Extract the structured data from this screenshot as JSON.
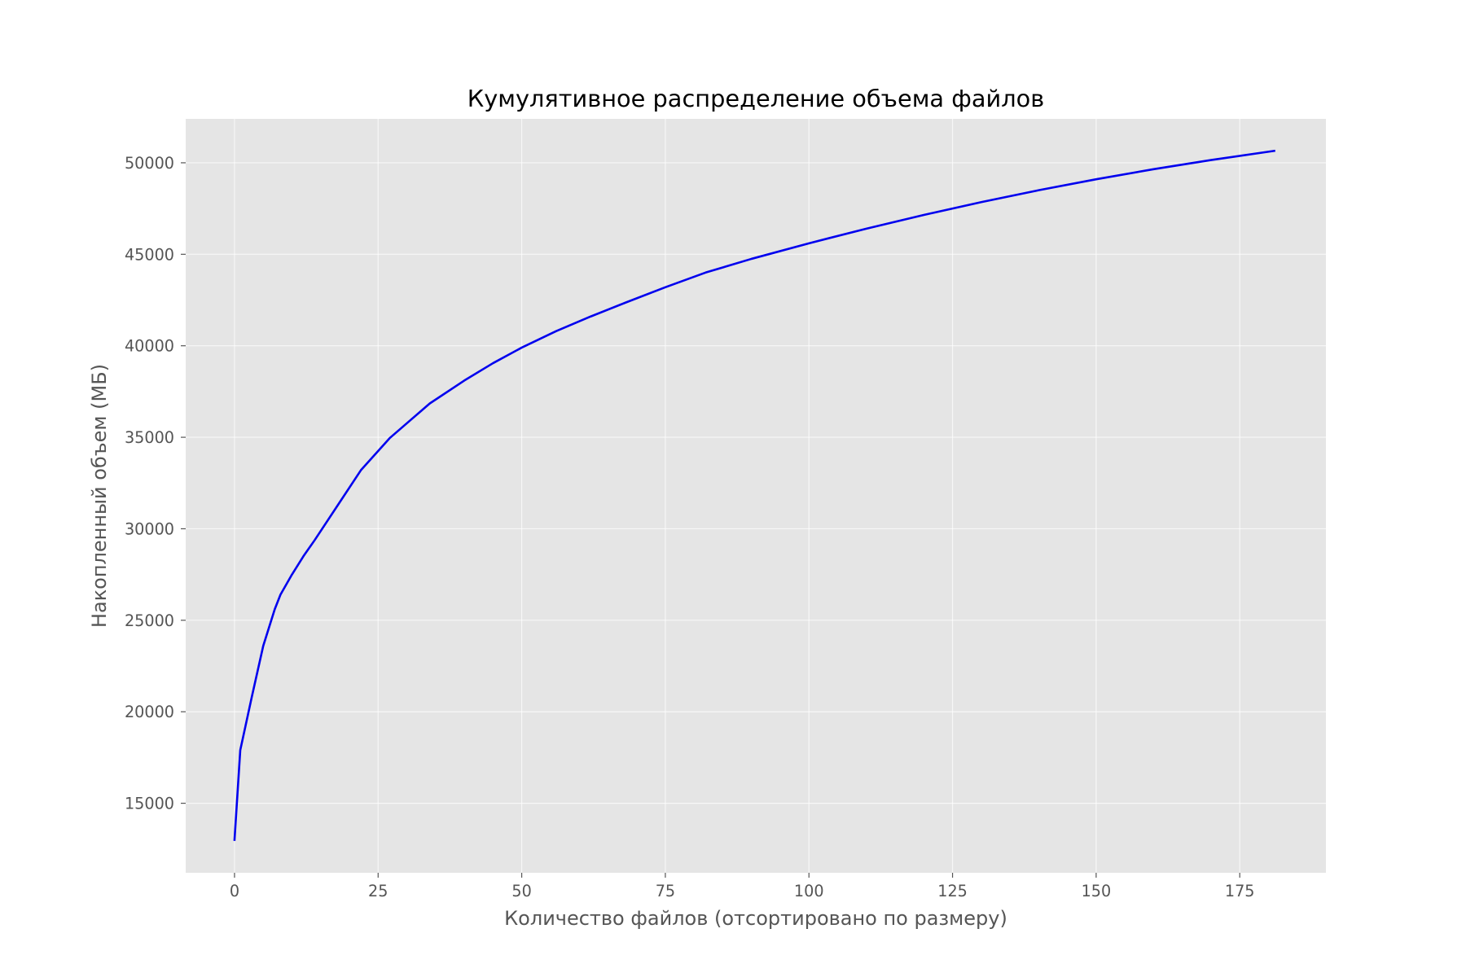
{
  "chart_data": {
    "type": "line",
    "title": "Кумулятивное распределение объема файлов",
    "xlabel": "Количество файлов (отсортировано по размеру)",
    "ylabel": "Накопленный объем (МБ)",
    "xlim": [
      -8.5,
      190
    ],
    "ylim": [
      11200,
      52400
    ],
    "xticks": [
      0,
      25,
      50,
      75,
      100,
      125,
      150,
      175
    ],
    "yticks": [
      15000,
      20000,
      25000,
      30000,
      35000,
      40000,
      45000,
      50000
    ],
    "grid": true,
    "series": [
      {
        "color": "#0000ee",
        "x": [
          0,
          1,
          3,
          5,
          7,
          8,
          10,
          12,
          14,
          18,
          22,
          27,
          34,
          40,
          45,
          50,
          56,
          62,
          68,
          75,
          82,
          90,
          100,
          110,
          120,
          130,
          140,
          150,
          160,
          170,
          181
        ],
        "y": [
          13000,
          17900,
          20800,
          23600,
          25600,
          26400,
          27500,
          28500,
          29400,
          31300,
          33200,
          34950,
          36850,
          38100,
          39050,
          39900,
          40800,
          41600,
          42350,
          43200,
          44000,
          44750,
          45600,
          46400,
          47150,
          47850,
          48500,
          49100,
          49650,
          50150,
          50650
        ]
      }
    ]
  }
}
